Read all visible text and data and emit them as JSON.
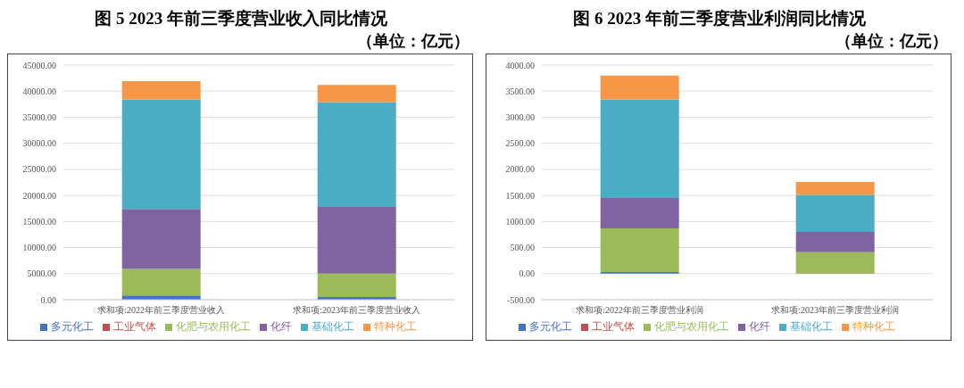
{
  "chart_data": [
    {
      "type": "bar",
      "title": "图 5 2023 年前三季度营业收入同比情况",
      "subtitle": "（单位：亿元）",
      "categories": [
        "求和项:2022年前三季度营业收入",
        "求和项:2023年前三季度营业收入"
      ],
      "stacked": true,
      "legend": "bottom",
      "grid": "y",
      "ylim": [
        0,
        45000
      ],
      "yticks": [
        {
          "value": 0,
          "label": "0.00"
        },
        {
          "value": 5000,
          "label": "5000.00"
        },
        {
          "value": 10000,
          "label": "10000.00"
        },
        {
          "value": 15000,
          "label": "15000.00"
        },
        {
          "value": 20000,
          "label": "20000.00"
        },
        {
          "value": 25000,
          "label": "25000.00"
        },
        {
          "value": 30000,
          "label": "30000.00"
        },
        {
          "value": 35000,
          "label": "35000.00"
        },
        {
          "value": 40000,
          "label": "40000.00"
        },
        {
          "value": 45000,
          "label": "45000.00"
        }
      ],
      "series": [
        {
          "name": "多元化工",
          "color": "#4472c4",
          "values": [
            800,
            500
          ]
        },
        {
          "name": "工业气体",
          "color": "#c0504d",
          "values": [
            0,
            0
          ]
        },
        {
          "name": "化肥与农用化工",
          "color": "#9bbb59",
          "values": [
            5100,
            4500
          ]
        },
        {
          "name": "化纤",
          "color": "#8064a2",
          "values": [
            11500,
            12800
          ]
        },
        {
          "name": "基础化工",
          "color": "#4bacc6",
          "values": [
            21000,
            20100
          ]
        },
        {
          "name": "特种化工",
          "color": "#f79646",
          "values": [
            3500,
            3300
          ]
        }
      ]
    },
    {
      "type": "bar",
      "title": "图 6 2023 年前三季度营业利润同比情况",
      "subtitle": "（单位：亿元）",
      "categories": [
        "求和项:2022年前三季度营业利润",
        "求和项:2023年前三季度营业利润"
      ],
      "stacked": true,
      "legend": "bottom",
      "grid": "y",
      "ylim": [
        -500,
        4000
      ],
      "yticks": [
        {
          "value": -500,
          "label": "-500.00"
        },
        {
          "value": 0,
          "label": "0.00"
        },
        {
          "value": 500,
          "label": "500.00"
        },
        {
          "value": 1000,
          "label": "1000.00"
        },
        {
          "value": 1500,
          "label": "1500.00"
        },
        {
          "value": 2000,
          "label": "2000.00"
        },
        {
          "value": 2500,
          "label": "2500.00"
        },
        {
          "value": 3000,
          "label": "3000.00"
        },
        {
          "value": 3500,
          "label": "3500.00"
        },
        {
          "value": 4000,
          "label": "4000.00"
        }
      ],
      "series": [
        {
          "name": "多元化工",
          "color": "#4472c4",
          "values": [
            30,
            0
          ]
        },
        {
          "name": "工业气体",
          "color": "#c0504d",
          "values": [
            0,
            10
          ]
        },
        {
          "name": "化肥与农用化工",
          "color": "#9bbb59",
          "values": [
            840,
            400
          ]
        },
        {
          "name": "化纤",
          "color": "#8064a2",
          "values": [
            580,
            390
          ]
        },
        {
          "name": "基础化工",
          "color": "#4bacc6",
          "values": [
            1890,
            710
          ]
        },
        {
          "name": "特种化工",
          "color": "#f79646",
          "values": [
            460,
            250
          ]
        }
      ]
    }
  ]
}
